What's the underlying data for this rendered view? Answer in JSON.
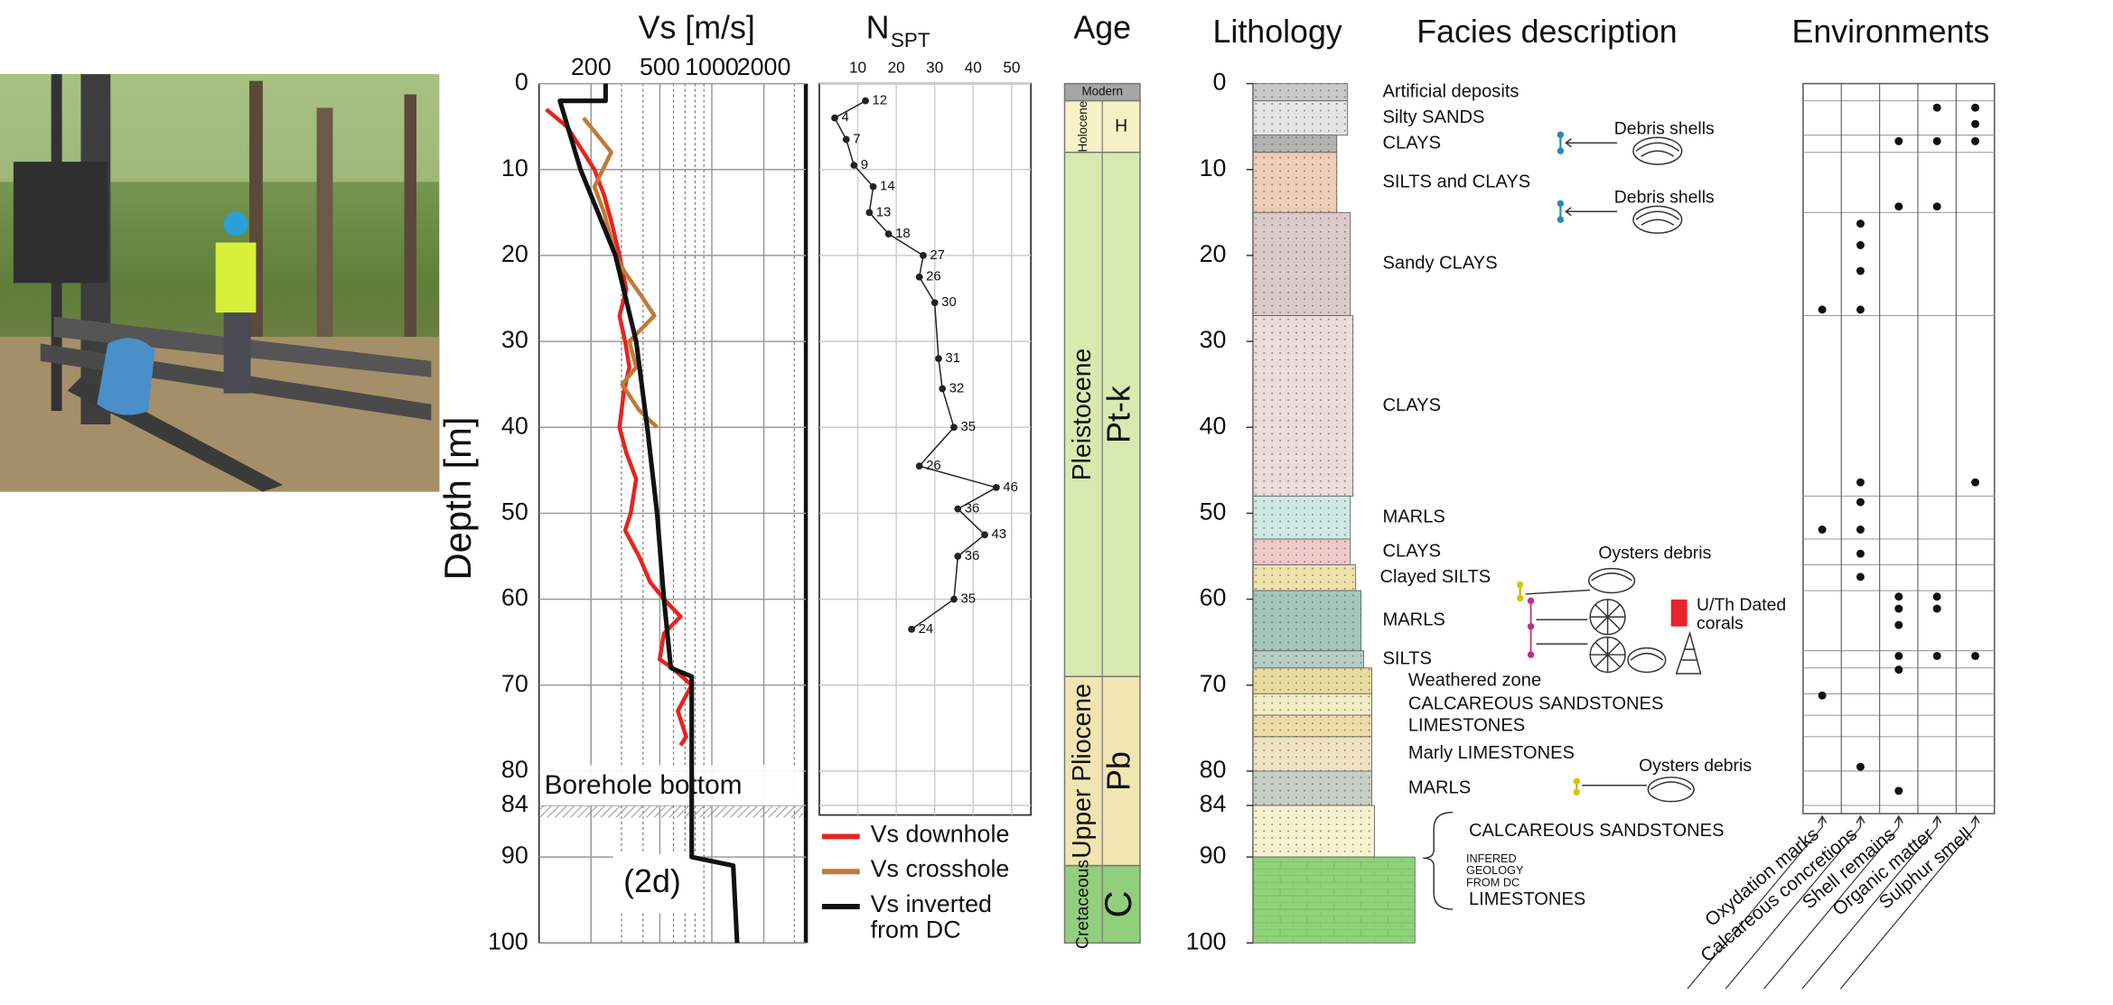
{
  "chart_data": [
    {
      "type": "line",
      "title": "Vs [m/s]",
      "ylabel": "Depth [m]",
      "xscale": "log",
      "xlim": [
        100,
        3500
      ],
      "xticks": [
        200,
        500,
        1000,
        2000
      ],
      "xminorticks": [
        300,
        400,
        600,
        700,
        800,
        900,
        3000
      ],
      "ylim": [
        0,
        100
      ],
      "y_inverted": true,
      "yticks": [
        0,
        10,
        20,
        30,
        40,
        50,
        60,
        70,
        80,
        84,
        90,
        100
      ],
      "grid": true,
      "legend": "bottom-right",
      "series": [
        {
          "name": "Vs downhole",
          "color": "#e8231e",
          "x": [
            110,
            145,
            181,
            209,
            238,
            262,
            292,
            320,
            292,
            315,
            333,
            309,
            292,
            320,
            365,
            339,
            315,
            379,
            439,
            528,
            659,
            528,
            499,
            589,
            765,
            636,
            711,
            659
          ],
          "values": [
            3,
            5,
            8,
            10,
            13,
            16,
            20,
            24,
            27,
            30,
            33,
            36,
            40,
            43,
            46,
            50,
            52,
            55,
            58,
            60,
            62,
            64,
            67,
            68,
            70,
            73,
            76,
            77
          ]
        },
        {
          "name": "Vs crosshole",
          "color": "#c07a38",
          "x": [
            181,
            262,
            209,
            238,
            277,
            315,
            400,
            465,
            333,
            365,
            303,
            379,
            482
          ],
          "values": [
            4,
            8,
            12,
            15,
            20,
            22,
            25,
            27,
            30,
            33,
            35,
            38,
            40
          ]
        },
        {
          "name": "Vs inverted from DC",
          "color": "#111111",
          "x": [
            243,
            243,
            132,
            174,
            277,
            365,
            423,
            482,
            528,
            579,
            765,
            765,
            1330,
            1400
          ],
          "values": [
            0,
            2,
            2,
            10,
            20,
            30,
            40,
            50,
            60,
            68,
            69,
            90,
            91,
            100
          ]
        }
      ],
      "annotations": [
        {
          "text": "Borehole bottom",
          "depth": 84
        },
        {
          "text": "(2d)"
        }
      ]
    },
    {
      "type": "scatter",
      "title": "N",
      "title_subscript": "SPT",
      "xlim": [
        0,
        55
      ],
      "xticks": [
        10,
        20,
        30,
        40,
        50
      ],
      "ylim": [
        0,
        100
      ],
      "y_inverted": true,
      "grid": true,
      "series": [
        {
          "color": "#222222",
          "x": [
            12,
            4,
            7,
            9,
            14,
            13,
            18,
            27,
            26,
            30,
            31,
            32,
            35,
            26,
            46,
            36,
            43,
            36,
            35,
            24
          ],
          "values": [
            2,
            4,
            6.5,
            9.5,
            12,
            15,
            17.5,
            20,
            22.5,
            25.5,
            32,
            35.5,
            40,
            44.5,
            47,
            49.5,
            52.5,
            55,
            60,
            63.5
          ]
        }
      ]
    },
    {
      "type": "column",
      "title": "Age",
      "ylim": [
        0,
        100
      ],
      "units": [
        {
          "name": "Modern",
          "top": 0,
          "base": 2,
          "color": "#a6a6a6"
        },
        {
          "name": "Holocene",
          "label": "H",
          "top": 2,
          "base": 8,
          "color": "#f7f2c6"
        },
        {
          "name": "Pleistocene",
          "label": "Pt-k",
          "top": 8,
          "base": 69,
          "color": "#d8eab0"
        },
        {
          "name": "Upper Pliocene",
          "label": "Pb",
          "top": 69,
          "base": 91,
          "color": "#f1e6b2"
        },
        {
          "name": "Cretaceous",
          "label": "C",
          "top": 91,
          "base": 100,
          "color": "#92cf7c"
        }
      ]
    },
    {
      "type": "lithology",
      "title": "Lithology",
      "facies_title": "Facies description",
      "ylim": [
        0,
        100
      ],
      "yticks": [
        0,
        10,
        20,
        30,
        40,
        50,
        60,
        70,
        80,
        84,
        90,
        100
      ],
      "layers": [
        {
          "facies": "Artificial deposits",
          "top": 0,
          "base": 2,
          "color": "#c9c9c9"
        },
        {
          "facies": "Silty SANDS",
          "top": 2,
          "base": 6,
          "color": "#e4e4e4"
        },
        {
          "facies": "CLAYS",
          "top": 6,
          "base": 8,
          "color": "#b3b3b3"
        },
        {
          "facies": "SILTS and CLAYS",
          "top": 8,
          "base": 15,
          "color": "#efcdb6"
        },
        {
          "facies": "Sandy CLAYS",
          "top": 15,
          "base": 27,
          "color": "#dccaca"
        },
        {
          "facies": "CLAYS",
          "top": 27,
          "base": 48,
          "color": "#ecdcdc"
        },
        {
          "facies": "MARLS",
          "top": 48,
          "base": 53,
          "color": "#cfe9e2"
        },
        {
          "facies": "CLAYS",
          "top": 53,
          "base": 56,
          "color": "#f0c9c9"
        },
        {
          "facies": "Clayed SILTS",
          "top": 56,
          "base": 59,
          "color": "#eee2ad"
        },
        {
          "facies": "MARLS",
          "top": 59,
          "base": 66,
          "color": "#a3c7ba"
        },
        {
          "facies": "SILTS",
          "top": 66,
          "base": 68,
          "color": "#b5cfc3"
        },
        {
          "facies": "Weathered zone",
          "top": 68,
          "base": 71,
          "color": "#e9dc9f"
        },
        {
          "facies": "CALCAREOUS SANDSTONES",
          "top": 71,
          "base": 73.5,
          "color": "#f4ecc5"
        },
        {
          "facies": "LIMESTONES",
          "top": 73.5,
          "base": 76,
          "color": "#ecdca8"
        },
        {
          "facies": "Marly LIMESTONES",
          "top": 76,
          "base": 80,
          "color": "#f1e3c1"
        },
        {
          "facies": "MARLS",
          "top": 80,
          "base": 84,
          "color": "#c8cfc6"
        },
        {
          "facies": "CALCAREOUS SANDSTONES",
          "top": 84,
          "base": 90,
          "color": "#f7f1cd"
        },
        {
          "facies": "LIMESTONES",
          "top": 90,
          "base": 100,
          "color": "#8fd27a"
        }
      ],
      "annotations": [
        "Debris shells",
        "Debris shells",
        "Oysters debris",
        "U/Th Dated corals",
        "Oysters debris",
        "INFERED GEOLOGY FROM DC"
      ]
    },
    {
      "type": "dot-matrix",
      "title": "Environments",
      "ylim": [
        0,
        100
      ],
      "y_inverted": true,
      "series": [
        {
          "name": "Oxydation marks",
          "values": [
            26.3,
            51.9,
            71.2
          ]
        },
        {
          "name": "Calcareous concretions",
          "values": [
            16.3,
            18.8,
            21.8,
            26.3,
            46.4,
            48.7,
            51.9,
            54.7,
            57.4,
            79.5
          ]
        },
        {
          "name": "Shell remains",
          "values": [
            6.7,
            14.3,
            59.7,
            61.1,
            63,
            66.6,
            68.2,
            82.3
          ]
        },
        {
          "name": "Organic matter",
          "values": [
            2.8,
            6.7,
            14.3,
            59.7,
            61.1,
            66.6
          ]
        },
        {
          "name": "Sulphur smell",
          "values": [
            2.8,
            4.7,
            6.7,
            46.4,
            66.6
          ]
        }
      ]
    }
  ]
}
